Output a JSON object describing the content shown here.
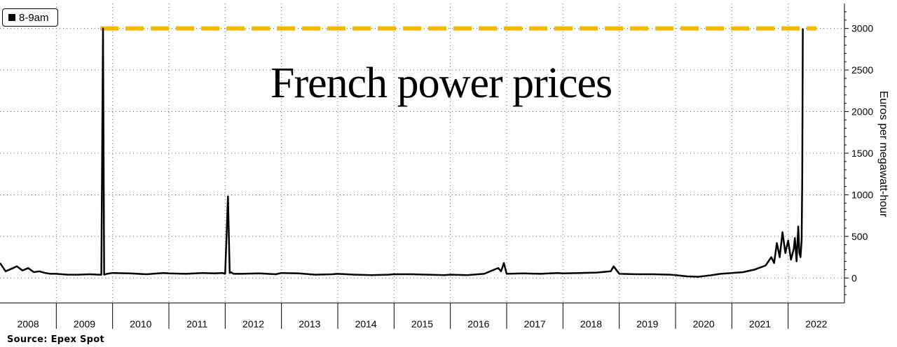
{
  "legend": {
    "label": "8-9am"
  },
  "source": "Source: Epex Spot",
  "chart_data": {
    "type": "line",
    "title": "French power prices",
    "xlabel": "",
    "ylabel": "Euros per megawatt-hour",
    "ylim": [
      -300,
      3300
    ],
    "yticks": [
      0,
      500,
      1000,
      1500,
      2000,
      2500,
      3000
    ],
    "categories": [
      "2008",
      "2009",
      "2010",
      "2011",
      "2012",
      "2013",
      "2014",
      "2015",
      "2016",
      "2017",
      "2018",
      "2019",
      "2020",
      "2021",
      "2022"
    ],
    "grid": true,
    "legend_position": "top-left",
    "cap_line": {
      "value": 3000,
      "color": "#f5b800",
      "style": "dashed"
    },
    "series_color": "#000000",
    "series": [
      {
        "name": "8-9am",
        "x": [
          2008.0,
          2008.1,
          2008.2,
          2008.3,
          2008.4,
          2008.5,
          2008.6,
          2008.7,
          2008.8,
          2008.9,
          2009.0,
          2009.2,
          2009.4,
          2009.6,
          2009.75,
          2009.8,
          2009.83,
          2009.85,
          2009.9,
          2010.0,
          2010.3,
          2010.6,
          2010.9,
          2011.0,
          2011.3,
          2011.6,
          2011.8,
          2011.95,
          2012.0,
          2012.05,
          2012.08,
          2012.1,
          2012.15,
          2012.3,
          2012.6,
          2012.9,
          2013.0,
          2013.3,
          2013.6,
          2013.9,
          2014.0,
          2014.3,
          2014.6,
          2014.9,
          2015.0,
          2015.3,
          2015.6,
          2015.9,
          2016.0,
          2016.3,
          2016.6,
          2016.85,
          2016.9,
          2016.95,
          2017.0,
          2017.3,
          2017.6,
          2017.9,
          2018.0,
          2018.3,
          2018.6,
          2018.85,
          2018.9,
          2019.0,
          2019.3,
          2019.6,
          2019.9,
          2020.0,
          2020.2,
          2020.4,
          2020.6,
          2020.8,
          2021.0,
          2021.2,
          2021.4,
          2021.6,
          2021.7,
          2021.75,
          2021.8,
          2021.85,
          2021.9,
          2021.95,
          2022.0,
          2022.05,
          2022.1,
          2022.12,
          2022.15,
          2022.18,
          2022.2,
          2022.22,
          2022.24,
          2022.25,
          2022.26
        ],
        "values": [
          180,
          80,
          110,
          140,
          90,
          120,
          70,
          80,
          60,
          50,
          50,
          40,
          40,
          45,
          40,
          40,
          3000,
          40,
          50,
          60,
          55,
          45,
          60,
          55,
          50,
          60,
          55,
          60,
          50,
          980,
          60,
          70,
          50,
          50,
          55,
          45,
          60,
          55,
          40,
          45,
          50,
          40,
          35,
          40,
          45,
          45,
          40,
          35,
          40,
          35,
          50,
          120,
          80,
          180,
          50,
          55,
          50,
          60,
          55,
          60,
          65,
          80,
          140,
          50,
          45,
          45,
          40,
          35,
          20,
          15,
          30,
          50,
          60,
          70,
          100,
          150,
          250,
          180,
          420,
          250,
          550,
          300,
          450,
          220,
          350,
          480,
          200,
          620,
          300,
          250,
          450,
          1200,
          3000
        ]
      }
    ]
  }
}
